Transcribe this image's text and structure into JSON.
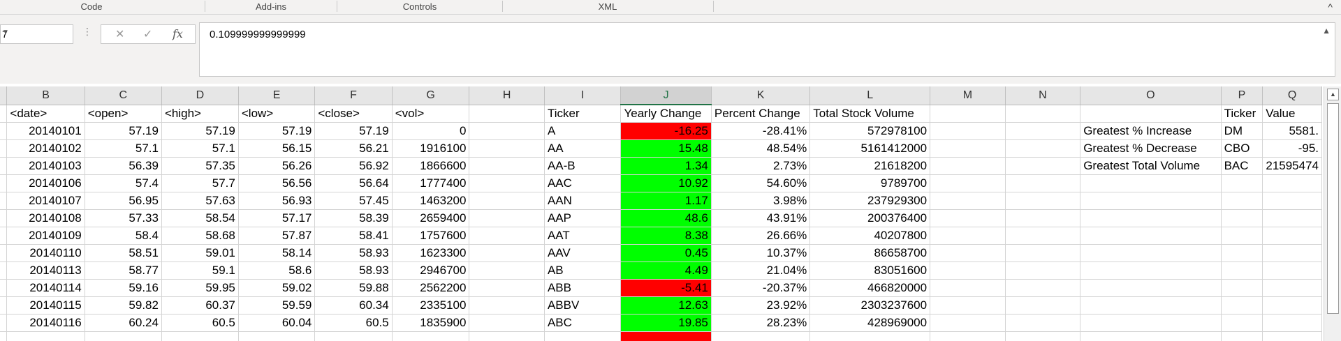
{
  "ribbon": {
    "groups": [
      "Code",
      "Add-ins",
      "Controls",
      "XML"
    ],
    "collapse_glyph": "^"
  },
  "formula_bar": {
    "name_box": "7",
    "cancel_glyph": "✕",
    "enter_glyph": "✓",
    "function_glyph": "fx",
    "value": "0.109999999999999"
  },
  "columns": [
    "B",
    "C",
    "D",
    "E",
    "F",
    "G",
    "H",
    "I",
    "J",
    "K",
    "L",
    "M",
    "N",
    "O",
    "P",
    "Q"
  ],
  "selected_column": "J",
  "header_row": {
    "B": "<date>",
    "C": "<open>",
    "D": "<high>",
    "E": "<low>",
    "F": "<close>",
    "G": "<vol>",
    "I": "Ticker",
    "J": "Yearly Change",
    "K": "Percent Change",
    "L": "Total Stock Volume",
    "P": "Ticker",
    "Q": "Value"
  },
  "rows": [
    {
      "B": "20140101",
      "C": "57.19",
      "D": "57.19",
      "E": "57.19",
      "F": "57.19",
      "G": "0",
      "I": "A",
      "J": "-16.25",
      "K": "-28.41%",
      "L": "572978100",
      "O": "Greatest % Increase",
      "P": "DM",
      "Q": "5581."
    },
    {
      "B": "20140102",
      "C": "57.1",
      "D": "57.1",
      "E": "56.15",
      "F": "56.21",
      "G": "1916100",
      "I": "AA",
      "J": "15.48",
      "K": "48.54%",
      "L": "5161412000",
      "O": "Greatest % Decrease",
      "P": "CBO",
      "Q": "-95."
    },
    {
      "B": "20140103",
      "C": "56.39",
      "D": "57.35",
      "E": "56.26",
      "F": "56.92",
      "G": "1866600",
      "I": "AA-B",
      "J": "1.34",
      "K": "2.73%",
      "L": "21618200",
      "O": "Greatest Total Volume",
      "P": "BAC",
      "Q": "21595474"
    },
    {
      "B": "20140106",
      "C": "57.4",
      "D": "57.7",
      "E": "56.56",
      "F": "56.64",
      "G": "1777400",
      "I": "AAC",
      "J": "10.92",
      "K": "54.60%",
      "L": "9789700"
    },
    {
      "B": "20140107",
      "C": "56.95",
      "D": "57.63",
      "E": "56.93",
      "F": "57.45",
      "G": "1463200",
      "I": "AAN",
      "J": "1.17",
      "K": "3.98%",
      "L": "237929300"
    },
    {
      "B": "20140108",
      "C": "57.33",
      "D": "58.54",
      "E": "57.17",
      "F": "58.39",
      "G": "2659400",
      "I": "AAP",
      "J": "48.6",
      "K": "43.91%",
      "L": "200376400"
    },
    {
      "B": "20140109",
      "C": "58.4",
      "D": "58.68",
      "E": "57.87",
      "F": "58.41",
      "G": "1757600",
      "I": "AAT",
      "J": "8.38",
      "K": "26.66%",
      "L": "40207800"
    },
    {
      "B": "20140110",
      "C": "58.51",
      "D": "59.01",
      "E": "58.14",
      "F": "58.93",
      "G": "1623300",
      "I": "AAV",
      "J": "0.45",
      "K": "10.37%",
      "L": "86658700"
    },
    {
      "B": "20140113",
      "C": "58.77",
      "D": "59.1",
      "E": "58.6",
      "F": "58.93",
      "G": "2946700",
      "I": "AB",
      "J": "4.49",
      "K": "21.04%",
      "L": "83051600"
    },
    {
      "B": "20140114",
      "C": "59.16",
      "D": "59.95",
      "E": "59.02",
      "F": "59.88",
      "G": "2562200",
      "I": "ABB",
      "J": "-5.41",
      "K": "-20.37%",
      "L": "466820000"
    },
    {
      "B": "20140115",
      "C": "59.82",
      "D": "60.37",
      "E": "59.59",
      "F": "60.34",
      "G": "2335100",
      "I": "ABBV",
      "J": "12.63",
      "K": "23.92%",
      "L": "2303237600"
    },
    {
      "B": "20140116",
      "C": "60.24",
      "D": "60.5",
      "E": "60.04",
      "F": "60.5",
      "G": "1835900",
      "I": "ABC",
      "J": "19.85",
      "K": "28.23%",
      "L": "428969000"
    },
    {
      "J": ""
    }
  ],
  "colors": {
    "negative_fill": "#ff0000",
    "positive_fill": "#00ff00",
    "selection_accent": "#217346"
  }
}
